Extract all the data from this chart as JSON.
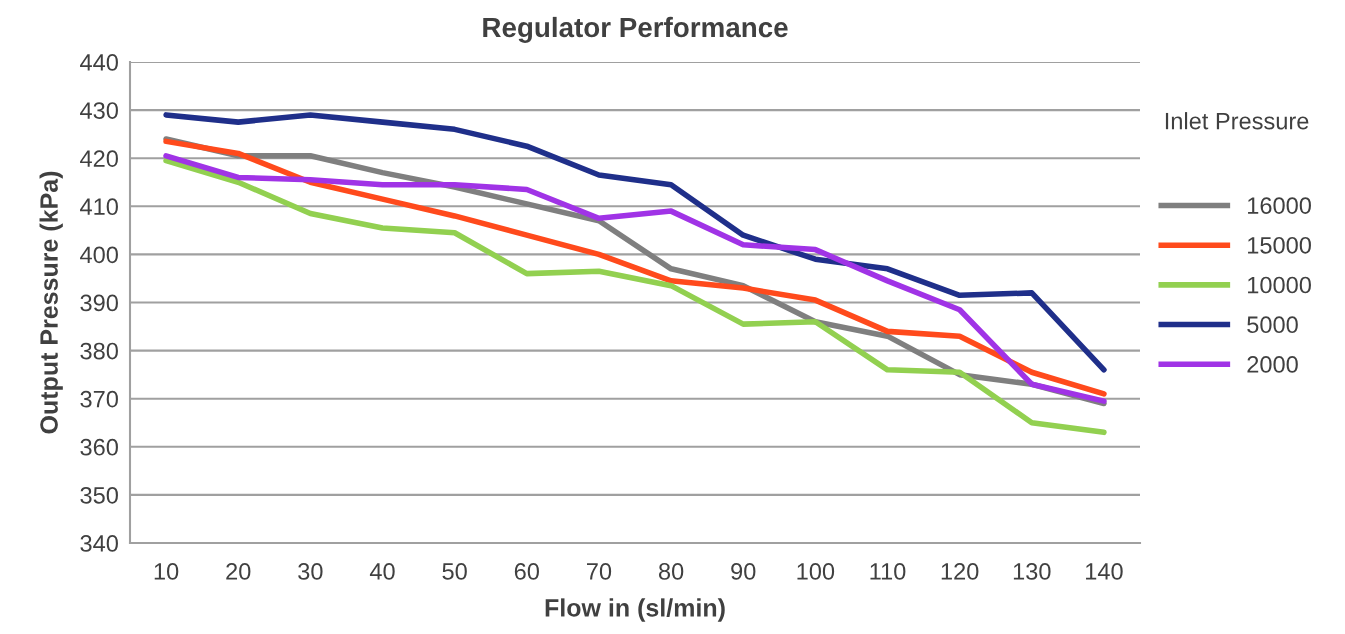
{
  "chart_data": {
    "type": "line",
    "title": "Regulator Performance",
    "xlabel": "Flow in (sl/min)",
    "ylabel": "Output Pressure (kPa)",
    "legend_title": "Inlet Pressure",
    "categories": [
      "10",
      "20",
      "30",
      "40",
      "50",
      "60",
      "70",
      "80",
      "90",
      "100",
      "110",
      "120",
      "130",
      "140"
    ],
    "series": [
      {
        "name": "16000",
        "color": "#7f7f7f",
        "values": [
          424,
          420.5,
          420.5,
          417,
          414,
          410.5,
          407,
          397,
          393.5,
          386,
          383,
          375,
          373,
          369
        ]
      },
      {
        "name": "15000",
        "color": "#ff4a1c",
        "values": [
          423.5,
          421,
          415,
          411.5,
          408,
          404,
          400,
          394.5,
          393,
          390.5,
          384,
          383,
          375.5,
          371
        ]
      },
      {
        "name": "10000",
        "color": "#92d050",
        "values": [
          419.5,
          415,
          408.5,
          405.5,
          404.5,
          396,
          396.5,
          393.5,
          385.5,
          386,
          376,
          375.5,
          365,
          363
        ]
      },
      {
        "name": "5000",
        "color": "#1f2f8a",
        "values": [
          429,
          427.5,
          429,
          427.5,
          426,
          422.5,
          416.5,
          414.5,
          404,
          399,
          397,
          391.5,
          392,
          376
        ]
      },
      {
        "name": "2000",
        "color": "#a033e6",
        "values": [
          420.5,
          416,
          415.5,
          414.5,
          414.5,
          413.5,
          407.5,
          409,
          402,
          401,
          394.5,
          388.5,
          373,
          369.5
        ]
      }
    ],
    "ylim": [
      340,
      440
    ],
    "yticks": [
      340,
      350,
      360,
      370,
      380,
      390,
      400,
      410,
      420,
      430,
      440
    ],
    "grid": "y",
    "legend": "right",
    "marker": "none",
    "line_style": "solid"
  }
}
